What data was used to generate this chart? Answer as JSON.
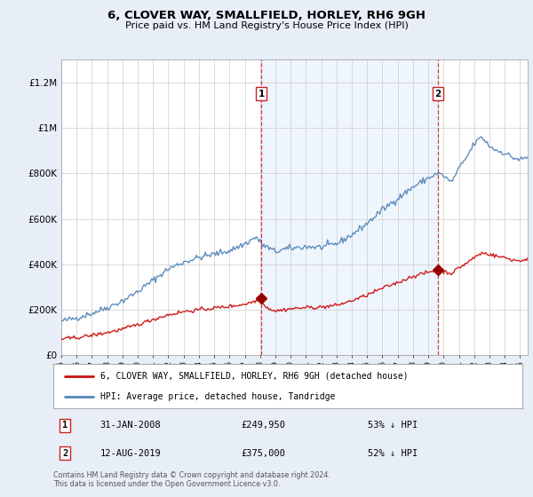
{
  "title": "6, CLOVER WAY, SMALLFIELD, HORLEY, RH6 9GH",
  "subtitle": "Price paid vs. HM Land Registry's House Price Index (HPI)",
  "hpi_label": "HPI: Average price, detached house, Tandridge",
  "property_label": "6, CLOVER WAY, SMALLFIELD, HORLEY, RH6 9GH (detached house)",
  "sale1_date": "31-JAN-2008",
  "sale1_price": 249950,
  "sale1_pct": "53% ↓ HPI",
  "sale2_date": "12-AUG-2019",
  "sale2_price": 375000,
  "sale2_pct": "52% ↓ HPI",
  "sale1_x": 2008.08,
  "sale2_x": 2019.62,
  "ylim": [
    0,
    1300000
  ],
  "xlim_start": 1995.0,
  "xlim_end": 2025.5,
  "background_color": "#e8eef8",
  "plot_bg_color": "#ffffff",
  "hpi_color": "#5588bb",
  "property_color": "#cc1111",
  "sale_marker_color": "#990000",
  "dashed_line_color": "#cc2222",
  "shade_color": "#d0e4f7",
  "footnote": "Contains HM Land Registry data © Crown copyright and database right 2024.\nThis data is licensed under the Open Government Licence v3.0."
}
